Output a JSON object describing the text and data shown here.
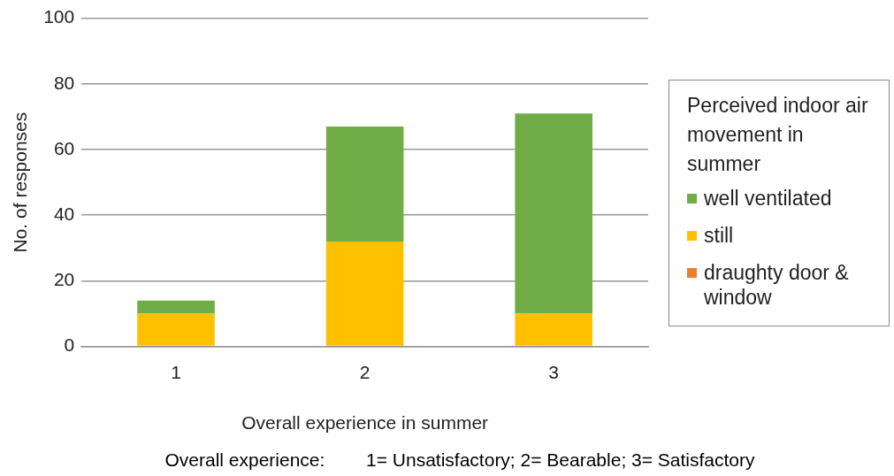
{
  "chart_data": {
    "type": "bar",
    "stacked": true,
    "xlabel": "Overall experience in summer",
    "ylabel": "No. of responses",
    "legend_title": "Perceived indoor air movement in summer",
    "legend": "right",
    "grid": "y",
    "categories": [
      "1",
      "2",
      "3"
    ],
    "series": [
      {
        "name": "draughty door & window",
        "color": "#ed7d31",
        "values": [
          0,
          0,
          0
        ]
      },
      {
        "name": "still",
        "color": "#ffc000",
        "values": [
          10,
          32,
          10
        ]
      },
      {
        "name": "well ventilated",
        "color": "#70ad47",
        "values": [
          4,
          35,
          61
        ]
      }
    ],
    "ylim": [
      0,
      100
    ],
    "yticks": [
      0,
      20,
      40,
      60,
      80,
      100
    ],
    "annotations": [
      "Overall experience:        1= Unsatisfactory; 2= Bearable; 3= Satisfactory"
    ]
  }
}
